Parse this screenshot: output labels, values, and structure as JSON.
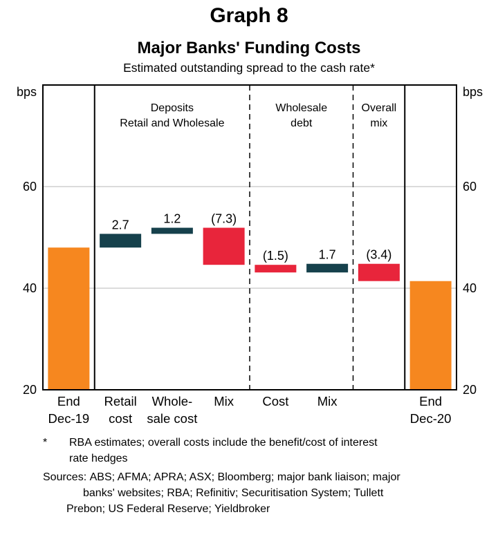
{
  "header": {
    "graph_label": "Graph 8",
    "title": "Major Banks' Funding Costs",
    "subtitle": "Estimated outstanding spread to the cash rate*"
  },
  "chart_data": {
    "type": "bar",
    "subtype": "waterfall",
    "title": "Major Banks' Funding Costs",
    "subtitle": "Estimated outstanding spread to the cash rate*",
    "unit": "bps",
    "ylim": [
      20,
      80
    ],
    "yticks": [
      20,
      40,
      60
    ],
    "gridlines": [
      40,
      60
    ],
    "grid": true,
    "legend": "none",
    "colors": {
      "total": "#F6871F",
      "increase": "#16414C",
      "decrease": "#E8253B",
      "gridline": "#B7B7B7",
      "axis": "#000000"
    },
    "groups": [
      {
        "header_lines": [],
        "separator_after": "solid",
        "bars": [
          {
            "label_lines": [
              "End",
              "Dec-19"
            ],
            "kind": "total",
            "value": 48.0,
            "data_label": ""
          }
        ]
      },
      {
        "header_lines": [
          "Deposits",
          "Retail and Wholesale"
        ],
        "separator_after": "dashed",
        "bars": [
          {
            "label_lines": [
              "Retail",
              "cost"
            ],
            "kind": "delta",
            "value": 2.7,
            "data_label": "2.7"
          },
          {
            "label_lines": [
              "Whole-",
              "sale cost"
            ],
            "kind": "delta",
            "value": 1.2,
            "data_label": "1.2"
          },
          {
            "label_lines": [
              "Mix"
            ],
            "kind": "delta",
            "value": -7.3,
            "data_label": "(7.3)"
          }
        ]
      },
      {
        "header_lines": [
          "Wholesale",
          "debt"
        ],
        "separator_after": "dashed",
        "bars": [
          {
            "label_lines": [
              "Cost"
            ],
            "kind": "delta",
            "value": -1.5,
            "data_label": "(1.5)"
          },
          {
            "label_lines": [
              "Mix"
            ],
            "kind": "delta",
            "value": 1.7,
            "data_label": "1.7"
          }
        ]
      },
      {
        "header_lines": [
          "Overall",
          "mix"
        ],
        "separator_after": "solid",
        "bars": [
          {
            "label_lines": [],
            "kind": "delta",
            "value": -3.4,
            "data_label": "(3.4)"
          }
        ]
      },
      {
        "header_lines": [],
        "separator_after": null,
        "bars": [
          {
            "label_lines": [
              "End",
              "Dec-20"
            ],
            "kind": "total",
            "value": 41.4,
            "data_label": ""
          }
        ]
      }
    ]
  },
  "footnotes": {
    "star_symbol": "*",
    "star_lines": [
      "RBA estimates; overall costs include the benefit/cost of interest",
      "rate hedges"
    ],
    "sources_label": "Sources:",
    "sources_lines": [
      "ABS; AFMA; APRA; ASX; Bloomberg; major bank liaison; major",
      "banks' websites; RBA; Refinitiv; Securitisation System; Tullett",
      "Prebon; US Federal Reserve; Yieldbroker"
    ]
  }
}
